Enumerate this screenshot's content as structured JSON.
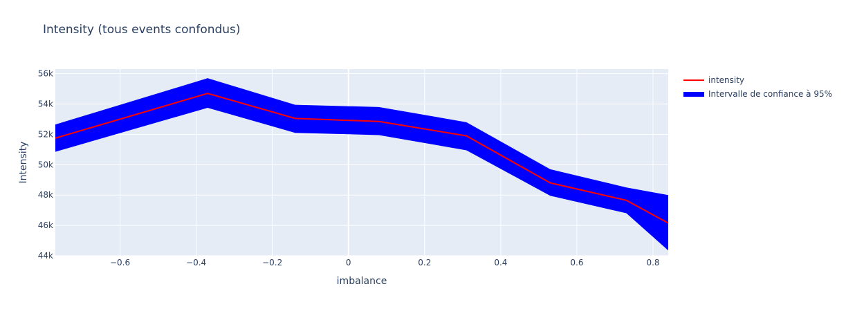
{
  "chart_data": {
    "type": "line",
    "title": "Intensity (tous events confondus)",
    "xlabel": "imbalance",
    "ylabel": "Intensity",
    "xlim": [
      -0.77,
      0.84
    ],
    "ylim": [
      44000,
      56300
    ],
    "x_ticks": [
      -0.6,
      -0.4,
      -0.2,
      0,
      0.2,
      0.4,
      0.6,
      0.8
    ],
    "x_tick_labels": [
      "−0.6",
      "−0.4",
      "−0.2",
      "0",
      "0.2",
      "0.4",
      "0.6",
      "0.8"
    ],
    "y_ticks": [
      44000,
      46000,
      48000,
      50000,
      52000,
      54000,
      56000
    ],
    "y_tick_labels": [
      "44k",
      "46k",
      "48k",
      "50k",
      "52k",
      "54k",
      "56k"
    ],
    "grid": true,
    "legend_position": "top-right",
    "series": [
      {
        "name": "intensity",
        "color": "#ff0000",
        "x": [
          -0.77,
          -0.37,
          -0.14,
          0.08,
          0.31,
          0.53,
          0.73,
          0.84
        ],
        "values": [
          51750,
          54700,
          53050,
          52850,
          51900,
          48800,
          47650,
          46150
        ]
      },
      {
        "name": "Intervalle de confiance à 95%",
        "color": "#0000ff",
        "x": [
          -0.77,
          -0.37,
          -0.14,
          0.08,
          0.31,
          0.53,
          0.73,
          0.84
        ],
        "upper": [
          52650,
          55700,
          53950,
          53800,
          52800,
          49700,
          48500,
          48000
        ],
        "lower": [
          50850,
          53750,
          52100,
          51950,
          50950,
          47950,
          46800,
          44350
        ]
      }
    ]
  }
}
